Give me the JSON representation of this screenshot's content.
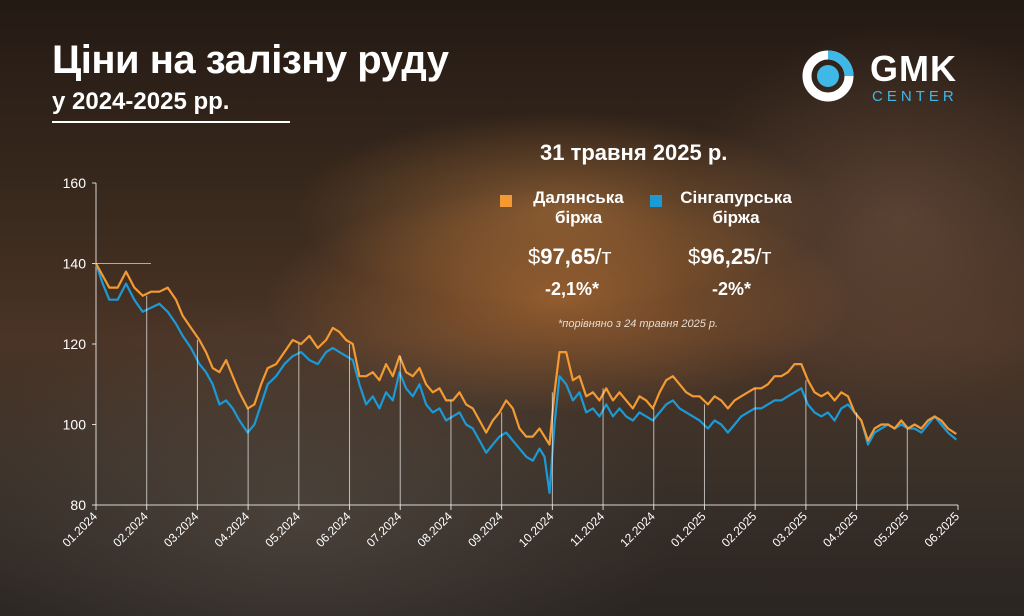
{
  "header": {
    "title": "Ціни на залізну руду",
    "subtitle": "у 2024-2025 рр."
  },
  "logo": {
    "name": "GMK",
    "sub": "CENTER",
    "icon": "gmk-center-logo-icon"
  },
  "summary": {
    "date": "31 травня 2025 р.",
    "dalian": {
      "label_line1": "Далянська",
      "label_line2": "біржа",
      "currency": "$",
      "price": "97,65",
      "unit": "/т",
      "change": "-2,1%*",
      "color": "#f39a32"
    },
    "singapore": {
      "label_line1": "Сінгапурська",
      "label_line2": "біржа",
      "currency": "$",
      "price": "96,25",
      "unit": "/т",
      "change": "-2%*",
      "color": "#1b9ad6"
    },
    "note": "*порівняно з 24 травня 2025 р."
  },
  "chart_data": {
    "type": "line",
    "ylim": [
      80,
      160
    ],
    "yticks": [
      "160",
      "140",
      "120",
      "100",
      "80"
    ],
    "xticks": [
      "01.2024",
      "02.2024",
      "03.2024",
      "04.2024",
      "05.2024",
      "06.2024",
      "07.2024",
      "08.2024",
      "09.2024",
      "10.2024",
      "11.2024",
      "12.2024",
      "01.2025",
      "02.2025",
      "03.2025",
      "04.2025",
      "05.2025",
      "06.2025"
    ],
    "x_range": [
      "2024-01-01",
      "2025-06-01"
    ],
    "series": [
      {
        "name": "Далянська біржа",
        "color": "#f39a32",
        "points": [
          [
            "2024-01-01",
            140
          ],
          [
            "2024-01-05",
            137
          ],
          [
            "2024-01-09",
            134
          ],
          [
            "2024-01-14",
            134
          ],
          [
            "2024-01-19",
            138
          ],
          [
            "2024-01-24",
            134
          ],
          [
            "2024-01-29",
            132
          ],
          [
            "2024-02-03",
            133
          ],
          [
            "2024-02-08",
            133
          ],
          [
            "2024-02-13",
            134
          ],
          [
            "2024-02-18",
            131
          ],
          [
            "2024-02-22",
            127
          ],
          [
            "2024-02-27",
            124
          ],
          [
            "2024-03-03",
            121
          ],
          [
            "2024-03-07",
            118
          ],
          [
            "2024-03-11",
            114
          ],
          [
            "2024-03-15",
            113
          ],
          [
            "2024-03-19",
            116
          ],
          [
            "2024-03-23",
            112
          ],
          [
            "2024-03-27",
            108
          ],
          [
            "2024-04-01",
            104
          ],
          [
            "2024-04-05",
            105
          ],
          [
            "2024-04-09",
            110
          ],
          [
            "2024-04-13",
            114
          ],
          [
            "2024-04-18",
            115
          ],
          [
            "2024-04-23",
            118
          ],
          [
            "2024-04-28",
            121
          ],
          [
            "2024-05-03",
            120
          ],
          [
            "2024-05-08",
            122
          ],
          [
            "2024-05-13",
            119
          ],
          [
            "2024-05-18",
            121
          ],
          [
            "2024-05-22",
            124
          ],
          [
            "2024-05-26",
            123
          ],
          [
            "2024-05-30",
            121
          ],
          [
            "2024-06-03",
            120
          ],
          [
            "2024-06-07",
            112
          ],
          [
            "2024-06-11",
            112
          ],
          [
            "2024-06-15",
            113
          ],
          [
            "2024-06-19",
            111
          ],
          [
            "2024-06-23",
            115
          ],
          [
            "2024-06-27",
            112
          ],
          [
            "2024-07-01",
            117
          ],
          [
            "2024-07-05",
            113
          ],
          [
            "2024-07-09",
            112
          ],
          [
            "2024-07-13",
            114
          ],
          [
            "2024-07-17",
            110
          ],
          [
            "2024-07-21",
            108
          ],
          [
            "2024-07-25",
            109
          ],
          [
            "2024-07-29",
            106
          ],
          [
            "2024-08-02",
            106
          ],
          [
            "2024-08-06",
            108
          ],
          [
            "2024-08-10",
            105
          ],
          [
            "2024-08-14",
            104
          ],
          [
            "2024-08-18",
            101
          ],
          [
            "2024-08-22",
            98
          ],
          [
            "2024-08-26",
            101
          ],
          [
            "2024-08-30",
            103
          ],
          [
            "2024-09-03",
            106
          ],
          [
            "2024-09-07",
            104
          ],
          [
            "2024-09-11",
            99
          ],
          [
            "2024-09-15",
            97
          ],
          [
            "2024-09-19",
            97
          ],
          [
            "2024-09-23",
            99
          ],
          [
            "2024-09-26",
            97
          ],
          [
            "2024-09-29",
            95
          ],
          [
            "2024-10-02",
            108
          ],
          [
            "2024-10-05",
            118
          ],
          [
            "2024-10-09",
            118
          ],
          [
            "2024-10-13",
            111
          ],
          [
            "2024-10-17",
            112
          ],
          [
            "2024-10-21",
            107
          ],
          [
            "2024-10-25",
            108
          ],
          [
            "2024-10-29",
            106
          ],
          [
            "2024-11-02",
            109
          ],
          [
            "2024-11-06",
            106
          ],
          [
            "2024-11-10",
            108
          ],
          [
            "2024-11-14",
            106
          ],
          [
            "2024-11-18",
            104
          ],
          [
            "2024-11-22",
            107
          ],
          [
            "2024-11-26",
            106
          ],
          [
            "2024-11-30",
            104
          ],
          [
            "2024-12-04",
            108
          ],
          [
            "2024-12-08",
            111
          ],
          [
            "2024-12-12",
            112
          ],
          [
            "2024-12-16",
            110
          ],
          [
            "2024-12-20",
            108
          ],
          [
            "2024-12-24",
            107
          ],
          [
            "2024-12-28",
            107
          ],
          [
            "2025-01-02",
            105
          ],
          [
            "2025-01-06",
            107
          ],
          [
            "2025-01-10",
            106
          ],
          [
            "2025-01-14",
            104
          ],
          [
            "2025-01-18",
            106
          ],
          [
            "2025-01-22",
            107
          ],
          [
            "2025-01-26",
            108
          ],
          [
            "2025-01-30",
            109
          ],
          [
            "2025-02-03",
            109
          ],
          [
            "2025-02-07",
            110
          ],
          [
            "2025-02-11",
            112
          ],
          [
            "2025-02-15",
            112
          ],
          [
            "2025-02-19",
            113
          ],
          [
            "2025-02-23",
            115
          ],
          [
            "2025-02-27",
            115
          ],
          [
            "2025-03-03",
            111
          ],
          [
            "2025-03-07",
            108
          ],
          [
            "2025-03-11",
            107
          ],
          [
            "2025-03-15",
            108
          ],
          [
            "2025-03-19",
            106
          ],
          [
            "2025-03-23",
            108
          ],
          [
            "2025-03-27",
            107
          ],
          [
            "2025-03-31",
            103
          ],
          [
            "2025-04-04",
            101
          ],
          [
            "2025-04-08",
            96
          ],
          [
            "2025-04-12",
            99
          ],
          [
            "2025-04-16",
            100
          ],
          [
            "2025-04-20",
            100
          ],
          [
            "2025-04-24",
            99
          ],
          [
            "2025-04-28",
            101
          ],
          [
            "2025-05-02",
            99
          ],
          [
            "2025-05-06",
            100
          ],
          [
            "2025-05-10",
            99
          ],
          [
            "2025-05-14",
            101
          ],
          [
            "2025-05-18",
            102
          ],
          [
            "2025-05-22",
            101
          ],
          [
            "2025-05-26",
            99
          ],
          [
            "2025-05-31",
            97.65
          ]
        ]
      },
      {
        "name": "Сінгапурська біржа",
        "color": "#1b9ad6",
        "points": [
          [
            "2024-01-01",
            140
          ],
          [
            "2024-01-05",
            135
          ],
          [
            "2024-01-09",
            131
          ],
          [
            "2024-01-14",
            131
          ],
          [
            "2024-01-19",
            135
          ],
          [
            "2024-01-24",
            131
          ],
          [
            "2024-01-29",
            128
          ],
          [
            "2024-02-03",
            129
          ],
          [
            "2024-02-08",
            130
          ],
          [
            "2024-02-13",
            128
          ],
          [
            "2024-02-18",
            125
          ],
          [
            "2024-02-22",
            122
          ],
          [
            "2024-02-27",
            119
          ],
          [
            "2024-03-03",
            115
          ],
          [
            "2024-03-07",
            113
          ],
          [
            "2024-03-11",
            110
          ],
          [
            "2024-03-15",
            105
          ],
          [
            "2024-03-19",
            106
          ],
          [
            "2024-03-23",
            104
          ],
          [
            "2024-03-27",
            101
          ],
          [
            "2024-04-01",
            98
          ],
          [
            "2024-04-05",
            100
          ],
          [
            "2024-04-09",
            105
          ],
          [
            "2024-04-13",
            110
          ],
          [
            "2024-04-18",
            112
          ],
          [
            "2024-04-23",
            115
          ],
          [
            "2024-04-28",
            117
          ],
          [
            "2024-05-03",
            118
          ],
          [
            "2024-05-08",
            116
          ],
          [
            "2024-05-13",
            115
          ],
          [
            "2024-05-18",
            118
          ],
          [
            "2024-05-22",
            119
          ],
          [
            "2024-05-26",
            118
          ],
          [
            "2024-05-30",
            117
          ],
          [
            "2024-06-03",
            116
          ],
          [
            "2024-06-07",
            110
          ],
          [
            "2024-06-11",
            105
          ],
          [
            "2024-06-15",
            107
          ],
          [
            "2024-06-19",
            104
          ],
          [
            "2024-06-23",
            108
          ],
          [
            "2024-06-27",
            106
          ],
          [
            "2024-07-01",
            113
          ],
          [
            "2024-07-05",
            109
          ],
          [
            "2024-07-09",
            107
          ],
          [
            "2024-07-13",
            110
          ],
          [
            "2024-07-17",
            105
          ],
          [
            "2024-07-21",
            103
          ],
          [
            "2024-07-25",
            104
          ],
          [
            "2024-07-29",
            101
          ],
          [
            "2024-08-02",
            102
          ],
          [
            "2024-08-06",
            103
          ],
          [
            "2024-08-10",
            100
          ],
          [
            "2024-08-14",
            99
          ],
          [
            "2024-08-18",
            96
          ],
          [
            "2024-08-22",
            93
          ],
          [
            "2024-08-26",
            95
          ],
          [
            "2024-08-30",
            97
          ],
          [
            "2024-09-03",
            98
          ],
          [
            "2024-09-07",
            96
          ],
          [
            "2024-09-11",
            94
          ],
          [
            "2024-09-15",
            92
          ],
          [
            "2024-09-19",
            91
          ],
          [
            "2024-09-23",
            94
          ],
          [
            "2024-09-26",
            92
          ],
          [
            "2024-09-29",
            83
          ],
          [
            "2024-10-02",
            100
          ],
          [
            "2024-10-05",
            112
          ],
          [
            "2024-10-09",
            110
          ],
          [
            "2024-10-13",
            106
          ],
          [
            "2024-10-17",
            108
          ],
          [
            "2024-10-21",
            103
          ],
          [
            "2024-10-25",
            104
          ],
          [
            "2024-10-29",
            102
          ],
          [
            "2024-11-02",
            105
          ],
          [
            "2024-11-06",
            102
          ],
          [
            "2024-11-10",
            104
          ],
          [
            "2024-11-14",
            102
          ],
          [
            "2024-11-18",
            101
          ],
          [
            "2024-11-22",
            103
          ],
          [
            "2024-11-26",
            102
          ],
          [
            "2024-11-30",
            101
          ],
          [
            "2024-12-04",
            103
          ],
          [
            "2024-12-08",
            105
          ],
          [
            "2024-12-12",
            106
          ],
          [
            "2024-12-16",
            104
          ],
          [
            "2024-12-20",
            103
          ],
          [
            "2024-12-24",
            102
          ],
          [
            "2024-12-28",
            101
          ],
          [
            "2025-01-02",
            99
          ],
          [
            "2025-01-06",
            101
          ],
          [
            "2025-01-10",
            100
          ],
          [
            "2025-01-14",
            98
          ],
          [
            "2025-01-18",
            100
          ],
          [
            "2025-01-22",
            102
          ],
          [
            "2025-01-26",
            103
          ],
          [
            "2025-01-30",
            104
          ],
          [
            "2025-02-03",
            104
          ],
          [
            "2025-02-07",
            105
          ],
          [
            "2025-02-11",
            106
          ],
          [
            "2025-02-15",
            106
          ],
          [
            "2025-02-19",
            107
          ],
          [
            "2025-02-23",
            108
          ],
          [
            "2025-02-27",
            109
          ],
          [
            "2025-03-03",
            105
          ],
          [
            "2025-03-07",
            103
          ],
          [
            "2025-03-11",
            102
          ],
          [
            "2025-03-15",
            103
          ],
          [
            "2025-03-19",
            101
          ],
          [
            "2025-03-23",
            104
          ],
          [
            "2025-03-27",
            105
          ],
          [
            "2025-03-31",
            103
          ],
          [
            "2025-04-04",
            101
          ],
          [
            "2025-04-08",
            95
          ],
          [
            "2025-04-12",
            98
          ],
          [
            "2025-04-16",
            99
          ],
          [
            "2025-04-20",
            100
          ],
          [
            "2025-04-24",
            99
          ],
          [
            "2025-04-28",
            100
          ],
          [
            "2025-05-02",
            99
          ],
          [
            "2025-05-06",
            99
          ],
          [
            "2025-05-10",
            98
          ],
          [
            "2025-05-14",
            100
          ],
          [
            "2025-05-18",
            102
          ],
          [
            "2025-05-22",
            100
          ],
          [
            "2025-05-26",
            98
          ],
          [
            "2025-05-31",
            96.25
          ]
        ]
      }
    ]
  }
}
